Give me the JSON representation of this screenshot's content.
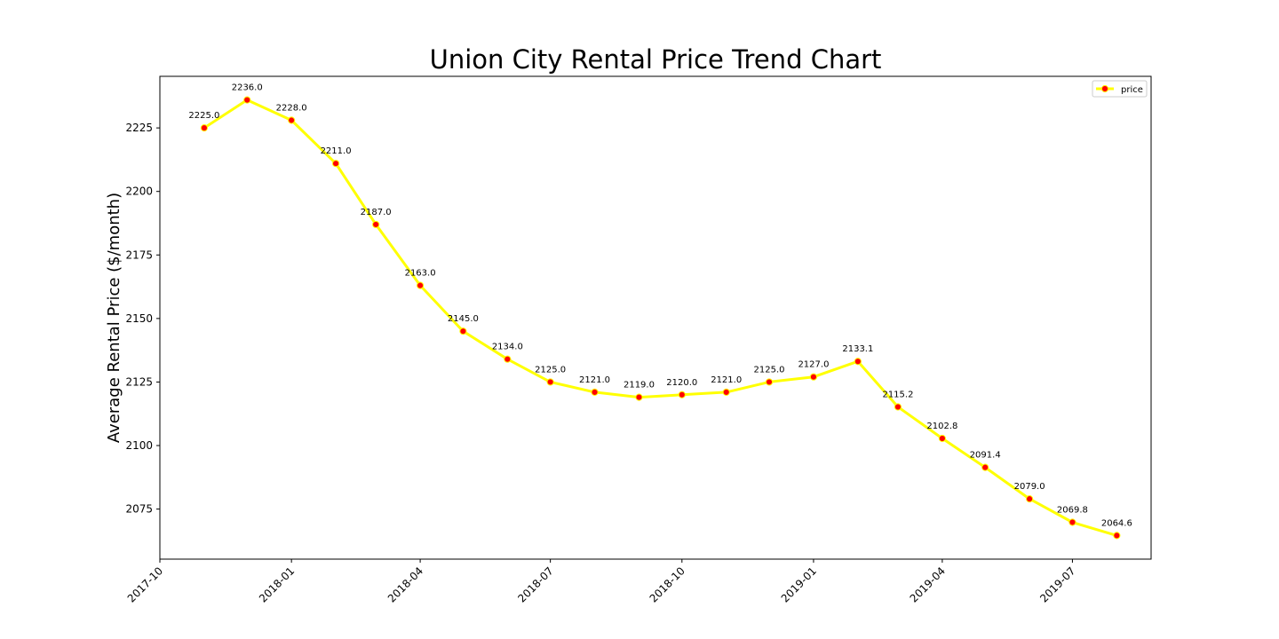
{
  "chart_data": {
    "type": "line",
    "title": "Union City Rental Price Trend Chart",
    "xlabel": "",
    "ylabel": "Average Rental Price ($/month)",
    "x": [
      "2017-11-01",
      "2017-12-01",
      "2018-01-01",
      "2018-02-01",
      "2018-03-01",
      "2018-04-01",
      "2018-05-01",
      "2018-06-01",
      "2018-07-01",
      "2018-08-01",
      "2018-09-01",
      "2018-10-01",
      "2018-11-01",
      "2018-12-01",
      "2019-01-01",
      "2019-02-01",
      "2019-03-01",
      "2019-04-01",
      "2019-05-01",
      "2019-06-01",
      "2019-07-01",
      "2019-08-01"
    ],
    "series": [
      {
        "name": "price",
        "values": [
          2225.0,
          2236.0,
          2228.0,
          2211.0,
          2187.0,
          2163.0,
          2145.0,
          2134.0,
          2125.0,
          2121.0,
          2119.0,
          2120.0,
          2121.0,
          2125.0,
          2127.0,
          2133.1,
          2115.2,
          2102.8,
          2091.4,
          2079.0,
          2069.8,
          2064.6
        ],
        "data_labels": [
          "2225.0",
          "2236.0",
          "2228.0",
          "2211.0",
          "2187.0",
          "2163.0",
          "2145.0",
          "2134.0",
          "2125.0",
          "2121.0",
          "2119.0",
          "2120.0",
          "2121.0",
          "2125.0",
          "2127.0",
          "2133.1",
          "2115.2",
          "2102.8",
          "2091.4",
          "2079.0",
          "2069.8",
          "2064.6"
        ],
        "line_color": "#ffff00",
        "marker_color": "#ff0000"
      }
    ],
    "x_ticks": [
      "2017-10",
      "2018-01",
      "2018-04",
      "2018-07",
      "2018-10",
      "2019-01",
      "2019-04",
      "2019-07"
    ],
    "y_ticks": [
      2075,
      2100,
      2125,
      2150,
      2175,
      2200,
      2225
    ],
    "xlim": [
      "2017-10-01",
      "2019-08-25"
    ],
    "ylim": [
      2055.3,
      2245.3
    ],
    "grid": false,
    "legend": "top-right"
  }
}
